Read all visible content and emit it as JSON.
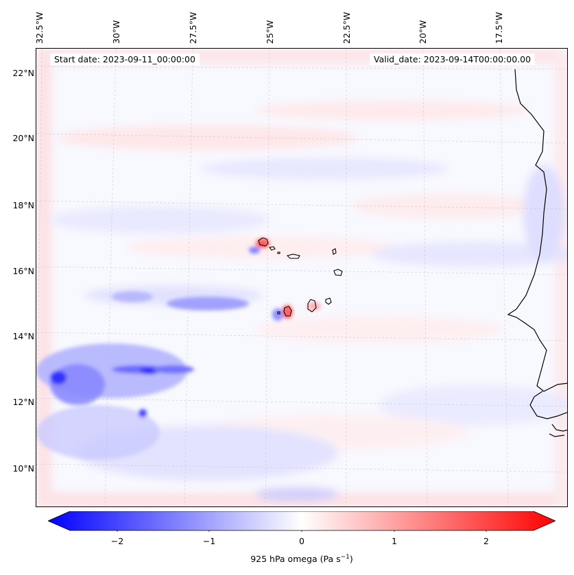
{
  "map": {
    "start_date_label": "Start date: 2023-09-11_00:00:00",
    "valid_date_label": "Valid_date: 2023-09-14T00:00:00.00",
    "lon_ticks": [
      "32.5°W",
      "30°W",
      "27.5°W",
      "25°W",
      "22.5°W",
      "20°W",
      "17.5°W"
    ],
    "lat_ticks": [
      "22°N",
      "20°N",
      "18°N",
      "16°N",
      "14°N",
      "12°N",
      "10°N"
    ],
    "field_colors": {
      "negative": "#0000ff",
      "zero": "#ffffff",
      "positive": "#ff0000"
    }
  },
  "colorbar": {
    "ticks": [
      "−2",
      "−1",
      "0",
      "1",
      "2"
    ],
    "label": "925 hPa omega (Pa s",
    "label_sup": "−1",
    "label_close": ")",
    "range": [
      -2.5,
      2.5
    ]
  }
}
